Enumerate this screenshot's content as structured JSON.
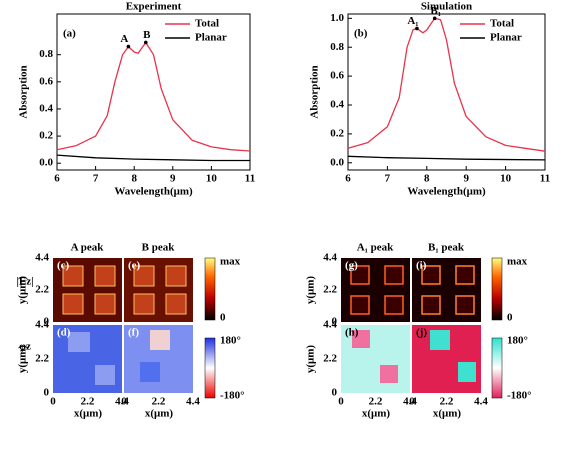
{
  "chart_data": [
    {
      "type": "line",
      "title": "Experiment",
      "panel_label": "(a)",
      "x_label": "Wavelength(μm)",
      "y_label": "Absorption",
      "xlim": [
        6,
        11
      ],
      "xticks": [
        6,
        7,
        8,
        9,
        10,
        11
      ],
      "ylim": [
        -0.05,
        1.1
      ],
      "yticks": [
        {
          "value": 0,
          "label": "0.0"
        },
        0.2,
        0.4,
        0.6,
        0.8
      ],
      "legend": "upper right",
      "series": [
        {
          "name": "Total",
          "color": "#e8334a",
          "x": [
            6,
            6.5,
            7,
            7.3,
            7.5,
            7.7,
            7.85,
            8.0,
            8.1,
            8.3,
            8.5,
            8.7,
            9,
            9.5,
            10,
            10.5,
            11
          ],
          "values": [
            0.1,
            0.13,
            0.2,
            0.35,
            0.6,
            0.8,
            0.86,
            0.82,
            0.81,
            0.89,
            0.8,
            0.55,
            0.32,
            0.17,
            0.12,
            0.1,
            0.09
          ]
        },
        {
          "name": "Planar",
          "color": "#000000",
          "x": [
            6,
            7,
            8,
            9,
            10,
            11
          ],
          "values": [
            0.06,
            0.04,
            0.03,
            0.025,
            0.02,
            0.02
          ]
        }
      ],
      "annotations": [
        {
          "text": "A",
          "x": 7.85,
          "y": 0.86
        },
        {
          "text": "B",
          "x": 8.3,
          "y": 0.89
        }
      ]
    },
    {
      "type": "line",
      "title": "Simulation",
      "panel_label": "(b)",
      "x_label": "Wavelength(μm)",
      "y_label": "Absorption",
      "xlim": [
        6,
        11
      ],
      "xticks": [
        6,
        7,
        8,
        9,
        10,
        11
      ],
      "ylim": [
        -0.05,
        1.03
      ],
      "yticks": [
        {
          "value": 0,
          "label": "0.0"
        },
        0.2,
        0.4,
        0.6,
        0.8,
        {
          "value": 1,
          "label": "1.0"
        }
      ],
      "legend": "upper right",
      "series": [
        {
          "name": "Total",
          "color": "#e8334a",
          "x": [
            6,
            6.5,
            7,
            7.3,
            7.5,
            7.65,
            7.75,
            7.9,
            8.0,
            8.2,
            8.35,
            8.5,
            8.7,
            9,
            9.5,
            10,
            10.5,
            11
          ],
          "values": [
            0.1,
            0.14,
            0.25,
            0.45,
            0.8,
            0.92,
            0.93,
            0.9,
            0.92,
            1.0,
            0.99,
            0.85,
            0.55,
            0.32,
            0.18,
            0.12,
            0.1,
            0.08
          ]
        },
        {
          "name": "Planar",
          "color": "#000000",
          "x": [
            6,
            7,
            8,
            9,
            11
          ],
          "values": [
            0.045,
            0.035,
            0.03,
            0.025,
            0.02
          ]
        }
      ],
      "annotations": [
        {
          "text": "A₁",
          "x": 7.75,
          "y": 0.93
        },
        {
          "text": "B₁",
          "x": 8.2,
          "y": 1.0
        }
      ]
    }
  ],
  "field_maps": {
    "row_labels": [
      "|Ez|",
      "φz"
    ],
    "left": {
      "headers": [
        "A peak",
        "B peak"
      ],
      "panels": [
        "(c)",
        "(e)",
        "(d)",
        "(f)"
      ]
    },
    "right": {
      "headers": [
        "A₁ peak",
        "B₁ peak"
      ],
      "panels": [
        "(g)",
        "(i)",
        "(h)",
        "(j)"
      ]
    },
    "x_label": "x(μm)",
    "y_label": "y(μm)",
    "ticks": [
      "0",
      "2.2",
      "4.4"
    ],
    "field_scale": [
      "max",
      "0"
    ],
    "phase_scale": [
      "180°",
      "-180°"
    ]
  }
}
